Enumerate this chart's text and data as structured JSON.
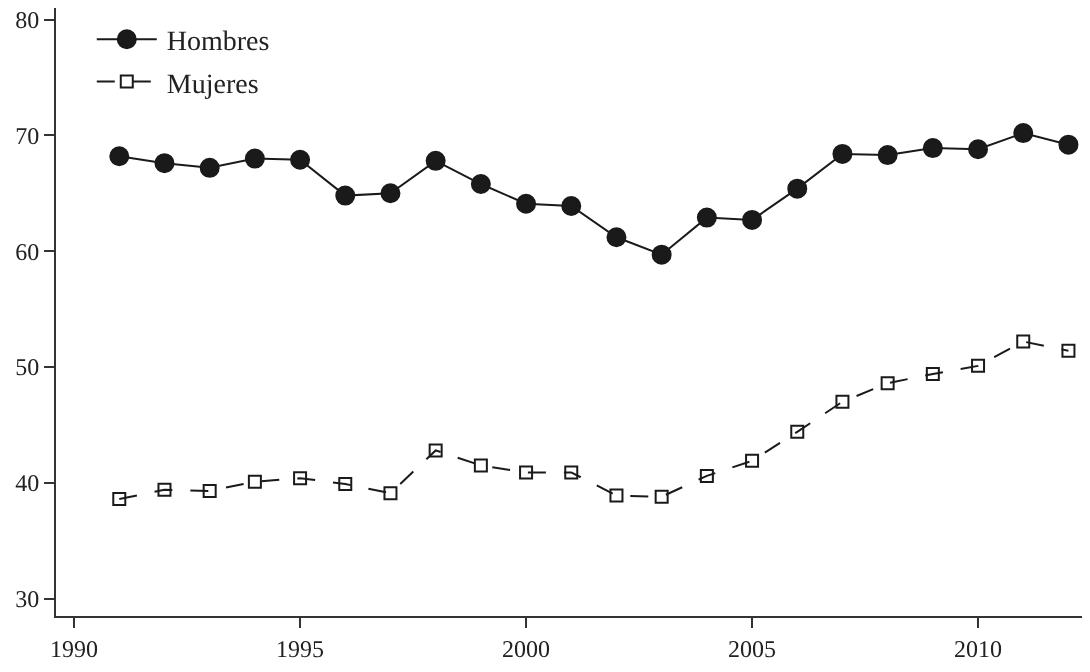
{
  "chart_data": {
    "type": "line",
    "x": [
      1991,
      1992,
      1993,
      1994,
      1995,
      1996,
      1997,
      1998,
      1999,
      2000,
      2001,
      2002,
      2003,
      2004,
      2005,
      2006,
      2007,
      2008,
      2009,
      2010,
      2011,
      2012
    ],
    "series": [
      {
        "name": "Hombres",
        "color": "#1a1a1a",
        "marker": "circle",
        "line_style": "solid",
        "values": [
          68.2,
          67.6,
          67.2,
          68.0,
          67.9,
          64.8,
          65.0,
          67.8,
          65.8,
          64.1,
          63.9,
          61.2,
          59.7,
          62.9,
          62.7,
          65.4,
          68.4,
          68.3,
          68.9,
          68.8,
          70.2,
          69.2
        ]
      },
      {
        "name": "Mujeres",
        "color": "#1a1a1a",
        "marker": "square",
        "line_style": "dashed",
        "values": [
          38.6,
          39.4,
          39.3,
          40.1,
          40.4,
          39.9,
          39.1,
          42.8,
          41.5,
          40.9,
          40.9,
          38.9,
          38.8,
          40.6,
          41.9,
          44.4,
          47.0,
          48.6,
          49.4,
          50.1,
          52.2,
          51.4
        ]
      }
    ],
    "xlim": [
      1989.6,
      2012.3
    ],
    "xticks": [
      1990,
      1995,
      2000,
      2005,
      2010
    ],
    "ylim": [
      28.5,
      81
    ],
    "yticks": [
      30,
      40,
      50,
      60,
      70,
      80
    ],
    "grid": false,
    "legend": "top left"
  }
}
